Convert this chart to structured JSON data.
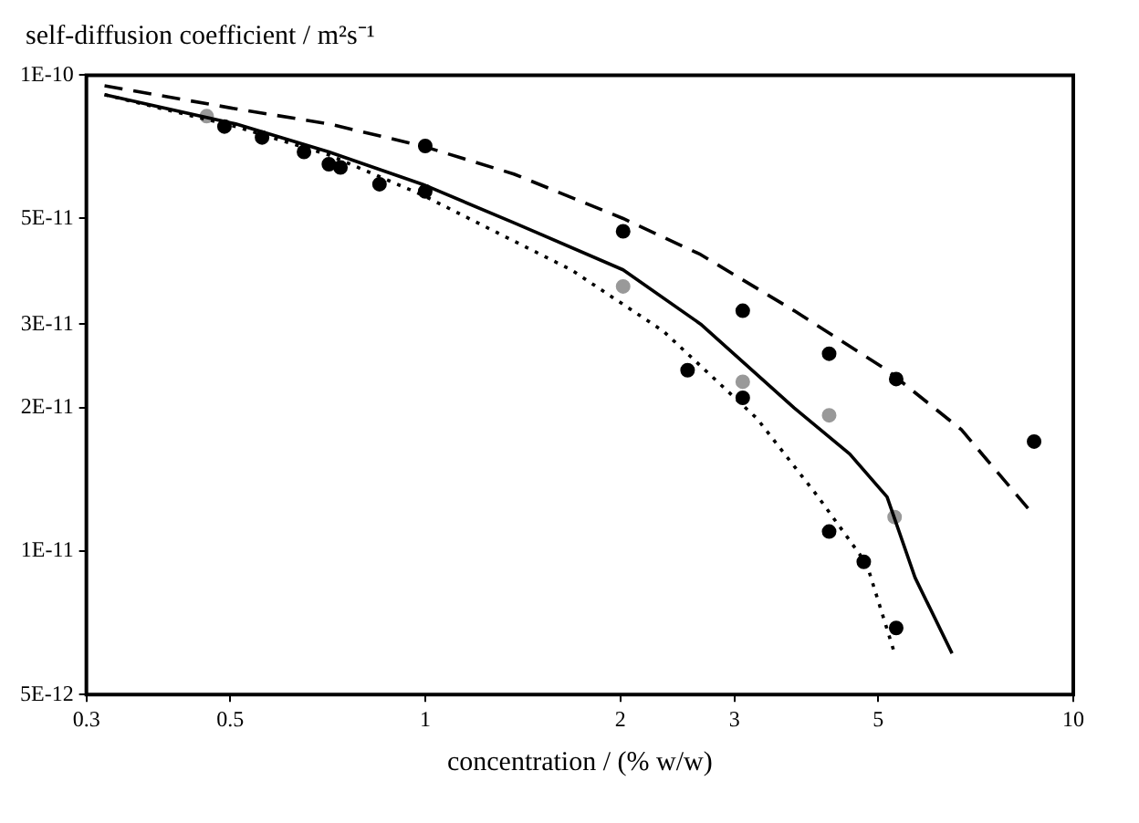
{
  "chart_data": {
    "type": "line",
    "ylabel": "self-diffusion coefficient / m²s⁻¹",
    "xlabel": "concentration / (% w/w)",
    "log": "xy",
    "grid": false,
    "legend": false,
    "xlim": [
      0.3,
      10
    ],
    "xticks": [
      0.3,
      0.5,
      1,
      2,
      3,
      5,
      10
    ],
    "ylim": [
      5e-12,
      1e-10
    ],
    "yticks": [
      {
        "value": 5e-12,
        "label": "5E-12"
      },
      {
        "value": 1e-11,
        "label": "1E-11"
      },
      {
        "value": 2e-11,
        "label": "2E-11"
      },
      {
        "value": 3e-11,
        "label": "3E-11"
      },
      {
        "value": 5e-11,
        "label": "5E-11"
      },
      {
        "value": 1e-10,
        "label": "1E-10"
      }
    ],
    "series": [
      {
        "type": "line",
        "line_style": "dashed",
        "color": "#000000",
        "x": [
          0.32,
          0.366,
          0.51,
          0.71,
          0.99,
          1.37,
          2.02,
          2.66,
          3.71,
          5.16,
          6.72,
          8.65
        ],
        "values": [
          9.5e-11,
          9.2e-11,
          8.5e-11,
          7.9e-11,
          7.1e-11,
          6.2e-11,
          5e-11,
          4.2e-11,
          3.2e-11,
          2.4e-11,
          1.8e-11,
          1.2e-11
        ]
      },
      {
        "type": "line",
        "line_style": "solid",
        "color": "#000000",
        "x": [
          0.32,
          0.51,
          0.71,
          0.99,
          1.37,
          2.02,
          2.66,
          3.71,
          4.52,
          5.16,
          5.7,
          6.5
        ],
        "values": [
          9.1e-11,
          7.9e-11,
          6.9e-11,
          5.9e-11,
          4.9e-11,
          3.9e-11,
          3e-11,
          2e-11,
          1.6e-11,
          1.3e-11,
          8.8e-12,
          6.1e-12
        ]
      },
      {
        "type": "line",
        "line_style": "dotted",
        "color": "#000000",
        "x": [
          0.32,
          0.51,
          0.71,
          0.99,
          1.68,
          2.33,
          3.25,
          4.04,
          4.8,
          5.3
        ],
        "values": [
          9.1e-11,
          7.8e-11,
          6.8e-11,
          5.6e-11,
          3.9e-11,
          2.9e-11,
          1.9e-11,
          1.3e-11,
          9.4e-12,
          6.1e-12
        ]
      },
      {
        "type": "scatter",
        "marker": "circle",
        "color": "#000000",
        "x": [
          0.49,
          0.56,
          0.65,
          0.71,
          0.74,
          0.85,
          1,
          1,
          2.02,
          2.54,
          3.09,
          3.09,
          4.2,
          4.2,
          4.75,
          5.33,
          5.33,
          8.7
        ],
        "values": [
          7.8e-11,
          7.4e-11,
          6.9e-11,
          6.5e-11,
          6.4e-11,
          5.9e-11,
          5.7e-11,
          7.1e-11,
          4.7e-11,
          2.4e-11,
          3.2e-11,
          2.1e-11,
          2.6e-11,
          1.1e-11,
          9.5e-12,
          2.3e-11,
          6.9e-12,
          1.7e-11
        ]
      },
      {
        "type": "scatter",
        "marker": "circle",
        "color": "#999999",
        "x": [
          0.46,
          2.02,
          3.09,
          4.2,
          5.3
        ],
        "values": [
          8.2e-11,
          3.6e-11,
          2.27e-11,
          1.93e-11,
          1.18e-11
        ]
      }
    ]
  }
}
